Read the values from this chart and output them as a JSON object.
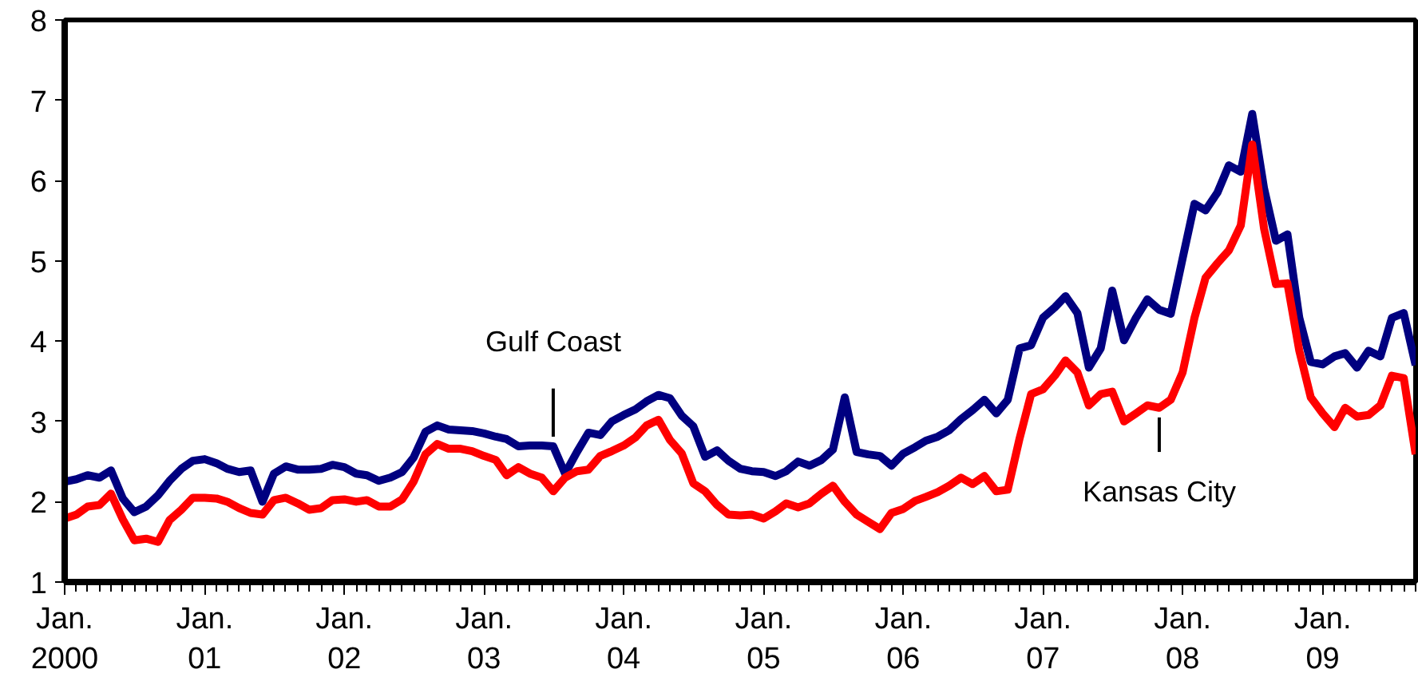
{
  "chart_data": {
    "type": "line",
    "line_style": "solid",
    "marker": "none",
    "grid": false,
    "x": [
      "2000-01",
      "2000-02",
      "2000-03",
      "2000-04",
      "2000-05",
      "2000-06",
      "2000-07",
      "2000-08",
      "2000-09",
      "2000-10",
      "2000-11",
      "2000-12",
      "2001-01",
      "2001-02",
      "2001-03",
      "2001-04",
      "2001-05",
      "2001-06",
      "2001-07",
      "2001-08",
      "2001-09",
      "2001-10",
      "2001-11",
      "2001-12",
      "2002-01",
      "2002-02",
      "2002-03",
      "2002-04",
      "2002-05",
      "2002-06",
      "2002-07",
      "2002-08",
      "2002-09",
      "2002-10",
      "2002-11",
      "2002-12",
      "2003-01",
      "2003-02",
      "2003-03",
      "2003-04",
      "2003-05",
      "2003-06",
      "2003-07",
      "2003-08",
      "2003-09",
      "2003-10",
      "2003-11",
      "2003-12",
      "2004-01",
      "2004-02",
      "2004-03",
      "2004-04",
      "2004-05",
      "2004-06",
      "2004-07",
      "2004-08",
      "2004-09",
      "2004-10",
      "2004-11",
      "2004-12",
      "2005-01",
      "2005-02",
      "2005-03",
      "2005-04",
      "2005-05",
      "2005-06",
      "2005-07",
      "2005-08",
      "2005-09",
      "2005-10",
      "2005-11",
      "2005-12",
      "2006-01",
      "2006-02",
      "2006-03",
      "2006-04",
      "2006-05",
      "2006-06",
      "2006-07",
      "2006-08",
      "2006-09",
      "2006-10",
      "2006-11",
      "2006-12",
      "2007-01",
      "2007-02",
      "2007-03",
      "2007-04",
      "2007-05",
      "2007-06",
      "2007-07",
      "2007-08",
      "2007-09",
      "2007-10",
      "2007-11",
      "2007-12",
      "2008-01",
      "2008-02",
      "2008-03",
      "2008-04",
      "2008-05",
      "2008-06",
      "2008-07",
      "2008-08",
      "2008-09",
      "2008-10",
      "2008-11",
      "2008-12",
      "2009-01",
      "2009-02",
      "2009-03",
      "2009-04",
      "2009-05",
      "2009-06",
      "2009-07",
      "2009-08",
      "2009-09"
    ],
    "series": [
      {
        "color": "#000080",
        "values": [
          2.25,
          2.28,
          2.33,
          2.3,
          2.39,
          2.04,
          1.87,
          1.94,
          2.08,
          2.26,
          2.41,
          2.51,
          2.53,
          2.48,
          2.41,
          2.37,
          2.39,
          2.0,
          2.35,
          2.44,
          2.4,
          2.4,
          2.41,
          2.46,
          2.43,
          2.35,
          2.33,
          2.26,
          2.3,
          2.37,
          2.55,
          2.87,
          2.95,
          2.9,
          2.89,
          2.88,
          2.85,
          2.81,
          2.78,
          2.69,
          2.7,
          2.7,
          2.69,
          2.35,
          2.62,
          2.86,
          2.83,
          3.0,
          3.08,
          3.15,
          3.25,
          3.33,
          3.29,
          3.07,
          2.94,
          2.56,
          2.64,
          2.51,
          2.41,
          2.38,
          2.37,
          2.32,
          2.38,
          2.5,
          2.45,
          2.52,
          2.65,
          3.3,
          2.62,
          2.59,
          2.57,
          2.45,
          2.6,
          2.68,
          2.76,
          2.81,
          2.89,
          3.03,
          3.14,
          3.27,
          3.1,
          3.27,
          3.91,
          3.95,
          4.29,
          4.42,
          4.56,
          4.35,
          3.67,
          3.91,
          4.63,
          4.01,
          4.29,
          4.52,
          4.39,
          4.34,
          5.03,
          5.71,
          5.63,
          5.85,
          6.19,
          6.11,
          6.83,
          5.9,
          5.25,
          5.33,
          4.29,
          3.74,
          3.71,
          3.81,
          3.85,
          3.67,
          3.88,
          3.81,
          4.29,
          4.35,
          3.7
        ]
      },
      {
        "color": "#ff0000",
        "values": [
          1.79,
          1.84,
          1.94,
          1.96,
          2.1,
          1.78,
          1.52,
          1.54,
          1.5,
          1.77,
          1.9,
          2.05,
          2.05,
          2.04,
          2.0,
          1.92,
          1.86,
          1.84,
          2.02,
          2.05,
          1.98,
          1.9,
          1.92,
          2.02,
          2.03,
          2.0,
          2.02,
          1.94,
          1.94,
          2.03,
          2.25,
          2.59,
          2.72,
          2.66,
          2.66,
          2.63,
          2.57,
          2.52,
          2.33,
          2.43,
          2.35,
          2.3,
          2.13,
          2.3,
          2.38,
          2.4,
          2.57,
          2.63,
          2.7,
          2.8,
          2.95,
          3.02,
          2.77,
          2.6,
          2.23,
          2.13,
          1.96,
          1.84,
          1.83,
          1.84,
          1.79,
          1.88,
          1.98,
          1.93,
          1.98,
          2.1,
          2.2,
          2.0,
          1.84,
          1.75,
          1.66,
          1.86,
          1.91,
          2.01,
          2.06,
          2.12,
          2.2,
          2.3,
          2.22,
          2.32,
          2.13,
          2.15,
          2.79,
          3.34,
          3.4,
          3.57,
          3.76,
          3.61,
          3.2,
          3.34,
          3.37,
          3.0,
          3.1,
          3.2,
          3.17,
          3.27,
          3.61,
          4.29,
          4.79,
          4.97,
          5.13,
          5.44,
          6.45,
          5.4,
          4.71,
          4.72,
          3.88,
          3.3,
          3.1,
          2.93,
          3.17,
          3.06,
          3.08,
          3.2,
          3.57,
          3.54,
          2.59
        ]
      }
    ],
    "ylim": [
      1,
      8
    ],
    "yticks": [
      1,
      2,
      3,
      4,
      5,
      6,
      7,
      8
    ],
    "xlim": [
      "2000-01",
      "2009-09"
    ],
    "xticks": [
      {
        "value": "2000-01",
        "label": "Jan.\n2000"
      },
      {
        "value": "2001-01",
        "label": "Jan.\n01"
      },
      {
        "value": "2002-01",
        "label": "Jan.\n02"
      },
      {
        "value": "2003-01",
        "label": "Jan.\n03"
      },
      {
        "value": "2004-01",
        "label": "Jan.\n04"
      },
      {
        "value": "2005-01",
        "label": "Jan.\n05"
      },
      {
        "value": "2006-01",
        "label": "Jan.\n06"
      },
      {
        "value": "2007-01",
        "label": "Jan.\n07"
      },
      {
        "value": "2008-01",
        "label": "Jan.\n08"
      },
      {
        "value": "2009-01",
        "label": "Jan.\n09"
      }
    ],
    "annotations": [
      {
        "text": "Gulf Coast",
        "x": "2003-07",
        "y": 2.69
      },
      {
        "text": "Kansas City",
        "x": "2007-11",
        "y": 3.17
      }
    ]
  }
}
